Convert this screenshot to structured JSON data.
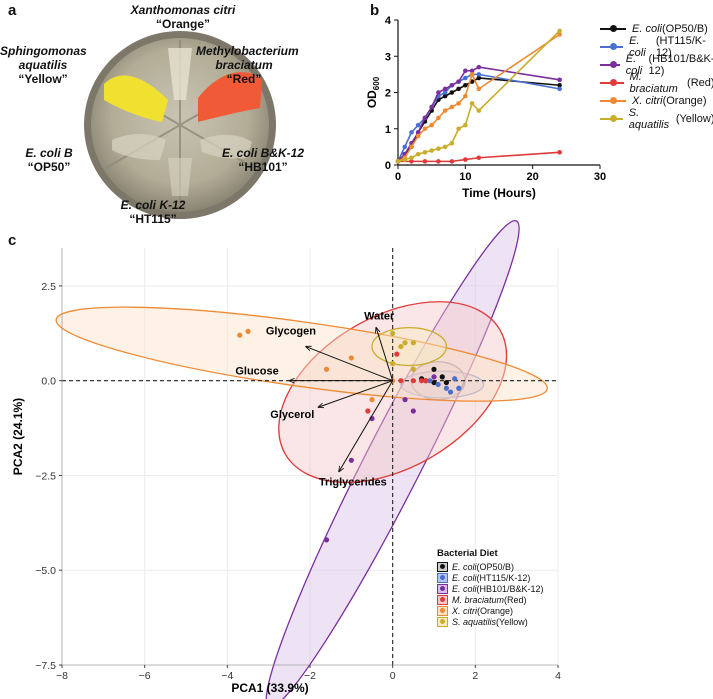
{
  "panel_a": {
    "letter": "a",
    "labels": [
      {
        "name": "Xanthomonas citri",
        "code": "“Orange”"
      },
      {
        "name": "Sphingomonas aquatilis",
        "code": "“Yellow”"
      },
      {
        "name": "Methylobacterium braciatum",
        "code": "“Red”"
      },
      {
        "name": "E. coli B",
        "code": "“OP50”"
      },
      {
        "name": "E. coli B&K-12",
        "code": "“HB101”"
      },
      {
        "name": "E. coli K-12",
        "code": "“HT115”"
      }
    ]
  },
  "chart_data": [
    {
      "panel": "b",
      "type": "line",
      "xlabel": "Time (Hours)",
      "ylabel": "OD",
      "ylabel_sub": "600",
      "xlim": [
        0,
        30
      ],
      "ylim": [
        0,
        4
      ],
      "xticks": [
        "0",
        "10",
        "20",
        "30"
      ],
      "yticks": [
        "0",
        "1",
        "2",
        "3",
        "4"
      ],
      "series": [
        {
          "name": "E. coli",
          "suffix": " (OP50/B)",
          "color": "#111111",
          "points": [
            [
              0,
              0.1
            ],
            [
              1,
              0.3
            ],
            [
              2,
              0.5
            ],
            [
              3,
              0.9
            ],
            [
              4,
              1.2
            ],
            [
              5,
              1.5
            ],
            [
              6,
              1.8
            ],
            [
              7,
              1.9
            ],
            [
              8,
              2.0
            ],
            [
              9,
              2.1
            ],
            [
              10,
              2.2
            ],
            [
              11,
              2.3
            ],
            [
              12,
              2.4
            ],
            [
              24,
              2.2
            ]
          ]
        },
        {
          "name": "E. coli",
          "suffix": " (HT115/K-12)",
          "color": "#4a6fd0",
          "points": [
            [
              0,
              0.1
            ],
            [
              1,
              0.5
            ],
            [
              2,
              0.9
            ],
            [
              3,
              1.1
            ],
            [
              4,
              1.3
            ],
            [
              5,
              1.6
            ],
            [
              6,
              1.9
            ],
            [
              7,
              2.0
            ],
            [
              8,
              2.2
            ],
            [
              9,
              2.3
            ],
            [
              10,
              2.4
            ],
            [
              11,
              2.5
            ],
            [
              12,
              2.5
            ],
            [
              24,
              2.1
            ]
          ]
        },
        {
          "name": "E. coli",
          "suffix": " (HB101/B&K-12)",
          "color": "#7b2f9e",
          "points": [
            [
              0,
              0.1
            ],
            [
              1,
              0.3
            ],
            [
              2,
              0.6
            ],
            [
              3,
              0.9
            ],
            [
              4,
              1.3
            ],
            [
              5,
              1.6
            ],
            [
              6,
              2.0
            ],
            [
              7,
              2.1
            ],
            [
              8,
              2.2
            ],
            [
              9,
              2.3
            ],
            [
              10,
              2.6
            ],
            [
              11,
              2.6
            ],
            [
              12,
              2.7
            ],
            [
              24,
              2.35
            ]
          ]
        },
        {
          "name": "M. braciatum",
          "suffix": " (Red)",
          "color": "#e03a3a",
          "points": [
            [
              0,
              0.1
            ],
            [
              2,
              0.1
            ],
            [
              4,
              0.1
            ],
            [
              6,
              0.1
            ],
            [
              8,
              0.1
            ],
            [
              10,
              0.15
            ],
            [
              12,
              0.2
            ],
            [
              24,
              0.35
            ]
          ]
        },
        {
          "name": "X. citri",
          "suffix": " (Orange)",
          "color": "#ef8a33",
          "points": [
            [
              0,
              0.1
            ],
            [
              1,
              0.2
            ],
            [
              2,
              0.5
            ],
            [
              3,
              0.8
            ],
            [
              4,
              1.0
            ],
            [
              5,
              1.1
            ],
            [
              6,
              1.3
            ],
            [
              7,
              1.5
            ],
            [
              8,
              1.6
            ],
            [
              9,
              1.7
            ],
            [
              10,
              1.9
            ],
            [
              11,
              2.5
            ],
            [
              12,
              2.1
            ],
            [
              24,
              3.6
            ]
          ]
        },
        {
          "name": "S. aquatilis",
          "suffix": " (Yellow)",
          "color": "#c9ad2c",
          "points": [
            [
              0,
              0.1
            ],
            [
              1,
              0.15
            ],
            [
              2,
              0.2
            ],
            [
              3,
              0.3
            ],
            [
              4,
              0.35
            ],
            [
              5,
              0.4
            ],
            [
              6,
              0.45
            ],
            [
              7,
              0.5
            ],
            [
              8,
              0.6
            ],
            [
              9,
              1.0
            ],
            [
              10,
              1.1
            ],
            [
              11,
              1.7
            ],
            [
              12,
              1.5
            ],
            [
              24,
              3.7
            ]
          ]
        }
      ]
    },
    {
      "panel": "c",
      "type": "scatter",
      "xlabel": "PCA1 (33.9%)",
      "ylabel": "PCA2 (24.1%)",
      "xlim": [
        -8,
        4
      ],
      "ylim": [
        -7.5,
        3.5
      ],
      "xticks": [
        -8,
        -6,
        -4,
        -2,
        0,
        2,
        4
      ],
      "xtick_labels": [
        "−8",
        "−6",
        "−4",
        "−2",
        "0",
        "2",
        "4"
      ],
      "yticks": [
        2.5,
        0,
        -2.5,
        -5,
        -7.5
      ],
      "ytick_labels": [
        "2.5",
        "0.0",
        "−2.5",
        "−5.0",
        "−7.5"
      ],
      "legend_title": "Bacterial Diet",
      "series": [
        {
          "name": "E. coli",
          "suffix": " (OP50/B)",
          "color": "#111111",
          "fill": "#cccccc",
          "points": [
            [
              0.8,
              0.0
            ],
            [
              1.0,
              0.3
            ],
            [
              1.2,
              0.1
            ],
            [
              0.7,
              0.05
            ],
            [
              1.3,
              -0.05
            ],
            [
              1.0,
              -0.05
            ]
          ],
          "ellipse": {
            "cx": 1.1,
            "cy": 0.0,
            "rx": 0.65,
            "ry": 0.5,
            "angle": 0
          }
        },
        {
          "name": "E. coli",
          "suffix": " (HT115/K-12)",
          "color": "#4a6fd0",
          "fill": "#b8c6f0",
          "points": [
            [
              1.3,
              -0.2
            ],
            [
              1.5,
              0.05
            ],
            [
              1.6,
              -0.2
            ],
            [
              1.1,
              -0.1
            ],
            [
              1.4,
              -0.3
            ],
            [
              0.9,
              0.0
            ]
          ],
          "ellipse": {
            "cx": 1.2,
            "cy": -0.1,
            "rx": 1.0,
            "ry": 0.35,
            "angle": 0
          }
        },
        {
          "name": "E. coli",
          "suffix": " (HB101/B&K-12)",
          "color": "#7b2f9e",
          "fill": "#d8c0e8",
          "points": [
            [
              -1.6,
              -4.2
            ],
            [
              -1.0,
              -2.1
            ],
            [
              -0.5,
              -1.0
            ],
            [
              0.3,
              -0.5
            ],
            [
              1.0,
              0.1
            ],
            [
              0.5,
              -0.8
            ]
          ],
          "ellipse": {
            "cx": 0.0,
            "cy": -2.2,
            "rx": 6.6,
            "ry": 0.75,
            "angle": 63
          }
        },
        {
          "name": "M. braciatum",
          "suffix": " (Red)",
          "color": "#e03a3a",
          "fill": "#f4c8c8",
          "points": [
            [
              -0.6,
              -0.8
            ],
            [
              0.1,
              0.7
            ],
            [
              0.2,
              0.0
            ],
            [
              0.5,
              0.0
            ],
            [
              0.7,
              0.0
            ],
            [
              0.8,
              0.0
            ]
          ],
          "ellipse": {
            "cx": 0.0,
            "cy": -0.3,
            "rx": 3.0,
            "ry": 2.0,
            "angle": 30
          }
        },
        {
          "name": "X. citri",
          "suffix": " (Orange)",
          "color": "#ef8a33",
          "fill": "#fbe3c6",
          "points": [
            [
              -3.5,
              1.3
            ],
            [
              -3.7,
              1.2
            ],
            [
              -1.6,
              0.3
            ],
            [
              -1.0,
              0.6
            ],
            [
              -0.5,
              -0.5
            ],
            [
              0.0,
              0.0
            ]
          ],
          "ellipse": {
            "cx": -2.2,
            "cy": 0.7,
            "rx": 6.0,
            "ry": 0.85,
            "angle": -8
          }
        },
        {
          "name": "S. aquatilis",
          "suffix": " (Yellow)",
          "color": "#c9ad2c",
          "fill": "#f6ecc0",
          "points": [
            [
              0.0,
              1.25
            ],
            [
              0.3,
              1.0
            ],
            [
              0.5,
              1.0
            ],
            [
              0.2,
              0.9
            ],
            [
              0.0,
              0.45
            ],
            [
              0.5,
              0.3
            ]
          ],
          "ellipse": {
            "cx": 0.4,
            "cy": 0.9,
            "rx": 0.9,
            "ry": 0.5,
            "angle": 0
          }
        }
      ],
      "arrows": [
        {
          "label": "Water",
          "x": -0.4,
          "y": 1.4
        },
        {
          "label": "Glycogen",
          "x": -2.1,
          "y": 0.9
        },
        {
          "label": "Glucose",
          "x": -2.5,
          "y": 0.0
        },
        {
          "label": "Glycerol",
          "x": -1.8,
          "y": -0.7
        },
        {
          "label": "Triglycerides",
          "x": -1.3,
          "y": -2.4
        }
      ]
    }
  ]
}
